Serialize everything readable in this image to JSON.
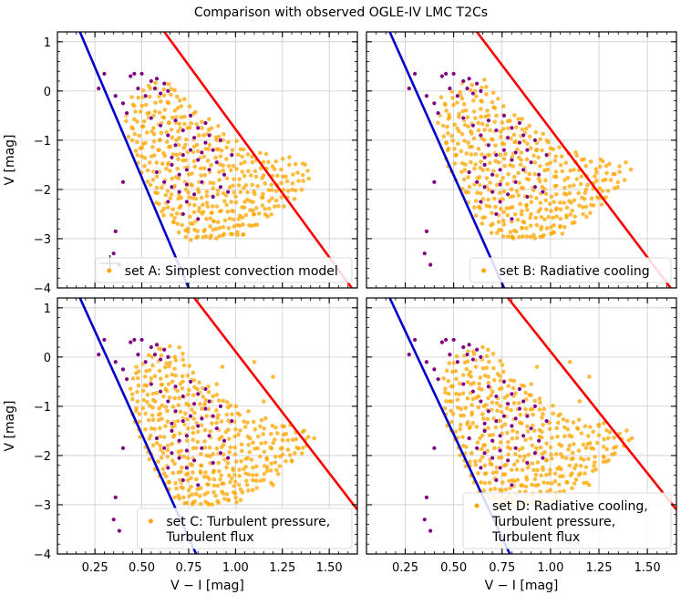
{
  "figure": {
    "title": "Comparison with observed OGLE-IV LMC T2Cs"
  },
  "colors": {
    "model": "#ffa500",
    "observed": "#800080",
    "blue_edge": "#0000cc",
    "red_edge": "#ff0000",
    "grid": "#cccccc"
  },
  "chart_data": [
    {
      "type": "scatter",
      "panel": "top-left",
      "legend": "set A: Simplest convection model",
      "ylabel": "V [mag]",
      "xlabel": "",
      "xlim": [
        0.05,
        1.65
      ],
      "ylim": [
        1.2,
        -4.0
      ],
      "xticks": [
        0.25,
        0.5,
        0.75,
        1.0,
        1.25,
        1.5
      ],
      "yticks": [
        -4,
        -3,
        -2,
        -1,
        0,
        1
      ],
      "grid": true,
      "legend_loc": "lower right",
      "show_errorbar": true,
      "blue_edge": [
        [
          0.17,
          1.2
        ],
        [
          0.75,
          -4.0
        ]
      ],
      "red_edge": [
        [
          0.62,
          1.2
        ],
        [
          1.62,
          -4.0
        ]
      ],
      "model_spread": 0.0
    },
    {
      "type": "scatter",
      "panel": "top-right",
      "legend": "set B: Radiative cooling",
      "ylabel": "",
      "xlabel": "",
      "xlim": [
        0.05,
        1.65
      ],
      "ylim": [
        1.2,
        -4.0
      ],
      "xticks": [
        0.25,
        0.5,
        0.75,
        1.0,
        1.25,
        1.5
      ],
      "yticks": [
        -4,
        -3,
        -2,
        -1,
        0,
        1
      ],
      "grid": true,
      "legend_loc": "lower right",
      "show_errorbar": false,
      "blue_edge": [
        [
          0.17,
          1.2
        ],
        [
          0.76,
          -4.0
        ]
      ],
      "red_edge": [
        [
          0.62,
          1.2
        ],
        [
          1.62,
          -4.0
        ]
      ],
      "model_spread": 0.0
    },
    {
      "type": "scatter",
      "panel": "bottom-left",
      "legend": "set C: Turbulent pressure,\nTurbulent flux",
      "ylabel": "V [mag]",
      "xlabel": "V − I [mag]",
      "xlim": [
        0.05,
        1.65
      ],
      "ylim": [
        1.2,
        -4.0
      ],
      "xticks": [
        0.25,
        0.5,
        0.75,
        1.0,
        1.25,
        1.5
      ],
      "yticks": [
        -4,
        -3,
        -2,
        -1,
        0,
        1
      ],
      "grid": true,
      "legend_loc": "lower right",
      "show_errorbar": false,
      "blue_edge": [
        [
          0.17,
          1.2
        ],
        [
          0.79,
          -4.0
        ]
      ],
      "red_edge": [
        [
          0.78,
          1.2
        ],
        [
          1.65,
          -3.1
        ]
      ],
      "model_spread": 0.15
    },
    {
      "type": "scatter",
      "panel": "bottom-right",
      "legend": "set D: Radiative cooling,\nTurbulent pressure,\nTurbulent flux",
      "ylabel": "",
      "xlabel": "V − I [mag]",
      "xlim": [
        0.05,
        1.65
      ],
      "ylim": [
        1.2,
        -4.0
      ],
      "xticks": [
        0.25,
        0.5,
        0.75,
        1.0,
        1.25,
        1.5
      ],
      "yticks": [
        -4,
        -3,
        -2,
        -1,
        0,
        1
      ],
      "grid": true,
      "legend_loc": "lower right",
      "show_errorbar": false,
      "blue_edge": [
        [
          0.17,
          1.2
        ],
        [
          0.79,
          -4.0
        ]
      ],
      "red_edge": [
        [
          0.78,
          1.2
        ],
        [
          1.65,
          -3.1
        ]
      ],
      "model_spread": 0.15
    }
  ],
  "observed_points": [
    [
      0.38,
      -3.53
    ],
    [
      0.35,
      -3.3
    ],
    [
      0.36,
      -2.85
    ],
    [
      0.4,
      -1.85
    ],
    [
      0.42,
      -0.45
    ],
    [
      0.27,
      0.05
    ],
    [
      0.3,
      0.35
    ],
    [
      0.36,
      -0.1
    ],
    [
      0.4,
      -0.25
    ],
    [
      0.44,
      0.3
    ],
    [
      0.46,
      0.35
    ],
    [
      0.5,
      0.35
    ],
    [
      0.55,
      0.2
    ],
    [
      0.58,
      0.25
    ],
    [
      0.62,
      0.15
    ],
    [
      0.48,
      0.05
    ],
    [
      0.52,
      -0.1
    ],
    [
      0.57,
      0.05
    ],
    [
      0.6,
      -0.05
    ],
    [
      0.64,
      0.0
    ],
    [
      0.55,
      -0.55
    ],
    [
      0.6,
      -0.7
    ],
    [
      0.64,
      -0.9
    ],
    [
      0.68,
      -1.1
    ],
    [
      0.72,
      -1.3
    ],
    [
      0.66,
      -1.5
    ],
    [
      0.7,
      -1.7
    ],
    [
      0.74,
      -1.9
    ],
    [
      0.78,
      -2.1
    ],
    [
      0.82,
      -1.85
    ],
    [
      0.86,
      -1.6
    ],
    [
      0.8,
      -1.4
    ],
    [
      0.76,
      -1.2
    ],
    [
      0.84,
      -1.05
    ],
    [
      0.88,
      -1.2
    ],
    [
      0.9,
      -1.45
    ],
    [
      0.94,
      -1.7
    ],
    [
      0.92,
      -1.95
    ],
    [
      0.96,
      -2.05
    ],
    [
      0.88,
      -2.15
    ],
    [
      0.74,
      -2.25
    ],
    [
      0.7,
      -2.05
    ],
    [
      0.62,
      -1.85
    ],
    [
      0.58,
      -1.65
    ],
    [
      0.66,
      -1.35
    ],
    [
      0.78,
      -0.95
    ],
    [
      0.82,
      -1.25
    ],
    [
      0.86,
      -0.9
    ],
    [
      0.8,
      -0.75
    ],
    [
      0.72,
      -0.8
    ],
    [
      0.68,
      -0.6
    ],
    [
      0.76,
      -0.5
    ],
    [
      0.84,
      -0.65
    ],
    [
      0.92,
      -1.0
    ],
    [
      0.98,
      -1.3
    ],
    [
      0.64,
      -2.25
    ],
    [
      0.72,
      -2.5
    ],
    [
      0.8,
      -2.6
    ],
    [
      0.66,
      -1.95
    ],
    [
      0.74,
      -1.6
    ]
  ],
  "model_rows": [
    {
      "v": -3.0,
      "x0": 0.75,
      "x1": 1.05,
      "n": 18
    },
    {
      "v": -2.85,
      "x0": 0.7,
      "x1": 1.12,
      "n": 22
    },
    {
      "v": -2.7,
      "x0": 0.66,
      "x1": 1.2,
      "n": 26
    },
    {
      "v": -2.55,
      "x0": 0.63,
      "x1": 1.25,
      "n": 28
    },
    {
      "v": -2.4,
      "x0": 0.6,
      "x1": 1.3,
      "n": 30
    },
    {
      "v": -2.25,
      "x0": 0.58,
      "x1": 1.35,
      "n": 30
    },
    {
      "v": -2.1,
      "x0": 0.56,
      "x1": 1.38,
      "n": 30
    },
    {
      "v": -1.95,
      "x0": 0.54,
      "x1": 1.4,
      "n": 30
    },
    {
      "v": -1.8,
      "x0": 0.52,
      "x1": 1.38,
      "n": 28
    },
    {
      "v": -1.65,
      "x0": 0.5,
      "x1": 1.28,
      "n": 26
    },
    {
      "v": -1.5,
      "x0": 0.48,
      "x1": 1.15,
      "n": 24
    },
    {
      "v": -1.35,
      "x0": 0.47,
      "x1": 1.05,
      "n": 22
    },
    {
      "v": -1.2,
      "x0": 0.46,
      "x1": 1.0,
      "n": 20
    },
    {
      "v": -1.05,
      "x0": 0.45,
      "x1": 0.95,
      "n": 20
    },
    {
      "v": -0.9,
      "x0": 0.44,
      "x1": 0.9,
      "n": 18
    },
    {
      "v": -0.75,
      "x0": 0.44,
      "x1": 0.85,
      "n": 16
    },
    {
      "v": -0.6,
      "x0": 0.43,
      "x1": 0.8,
      "n": 14
    },
    {
      "v": -0.45,
      "x0": 0.43,
      "x1": 0.75,
      "n": 12
    },
    {
      "v": -0.3,
      "x0": 0.44,
      "x1": 0.72,
      "n": 10
    },
    {
      "v": -0.15,
      "x0": 0.45,
      "x1": 0.7,
      "n": 8
    },
    {
      "v": 0.0,
      "x0": 0.5,
      "x1": 0.68,
      "n": 6
    },
    {
      "v": 0.15,
      "x0": 0.55,
      "x1": 0.66,
      "n": 4
    }
  ]
}
